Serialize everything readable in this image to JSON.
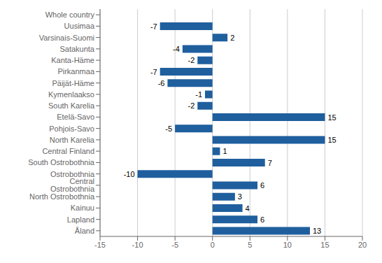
{
  "chart_data": {
    "type": "bar",
    "orientation": "horizontal",
    "categories": [
      "Whole country",
      "Uusimaa",
      "Varsinais-Suomi",
      "Satakunta",
      "Kanta-Häme",
      "Pirkanmaa",
      "Päijät-Häme",
      "Kymenlaakso",
      "South Karelia",
      "Etelä-Savo",
      "Pohjois-Savo",
      "North Karelia",
      "Central Finland",
      "South Ostrobothnia",
      "Ostrobothnia",
      "Central Ostrobothnia",
      "North Ostrobothnia",
      "Kainuu",
      "Lapland",
      "Åland"
    ],
    "values": [
      0,
      -7,
      2,
      -4,
      -2,
      -7,
      -6,
      -1,
      -2,
      15,
      -5,
      15,
      1,
      7,
      -10,
      6,
      3,
      4,
      6,
      13
    ],
    "color": "#1F5F9E",
    "xlim": [
      -15,
      20
    ],
    "xticks": [
      -15,
      -10,
      -5,
      0,
      5,
      10,
      15,
      20
    ],
    "grid": true,
    "data_labels": true
  }
}
